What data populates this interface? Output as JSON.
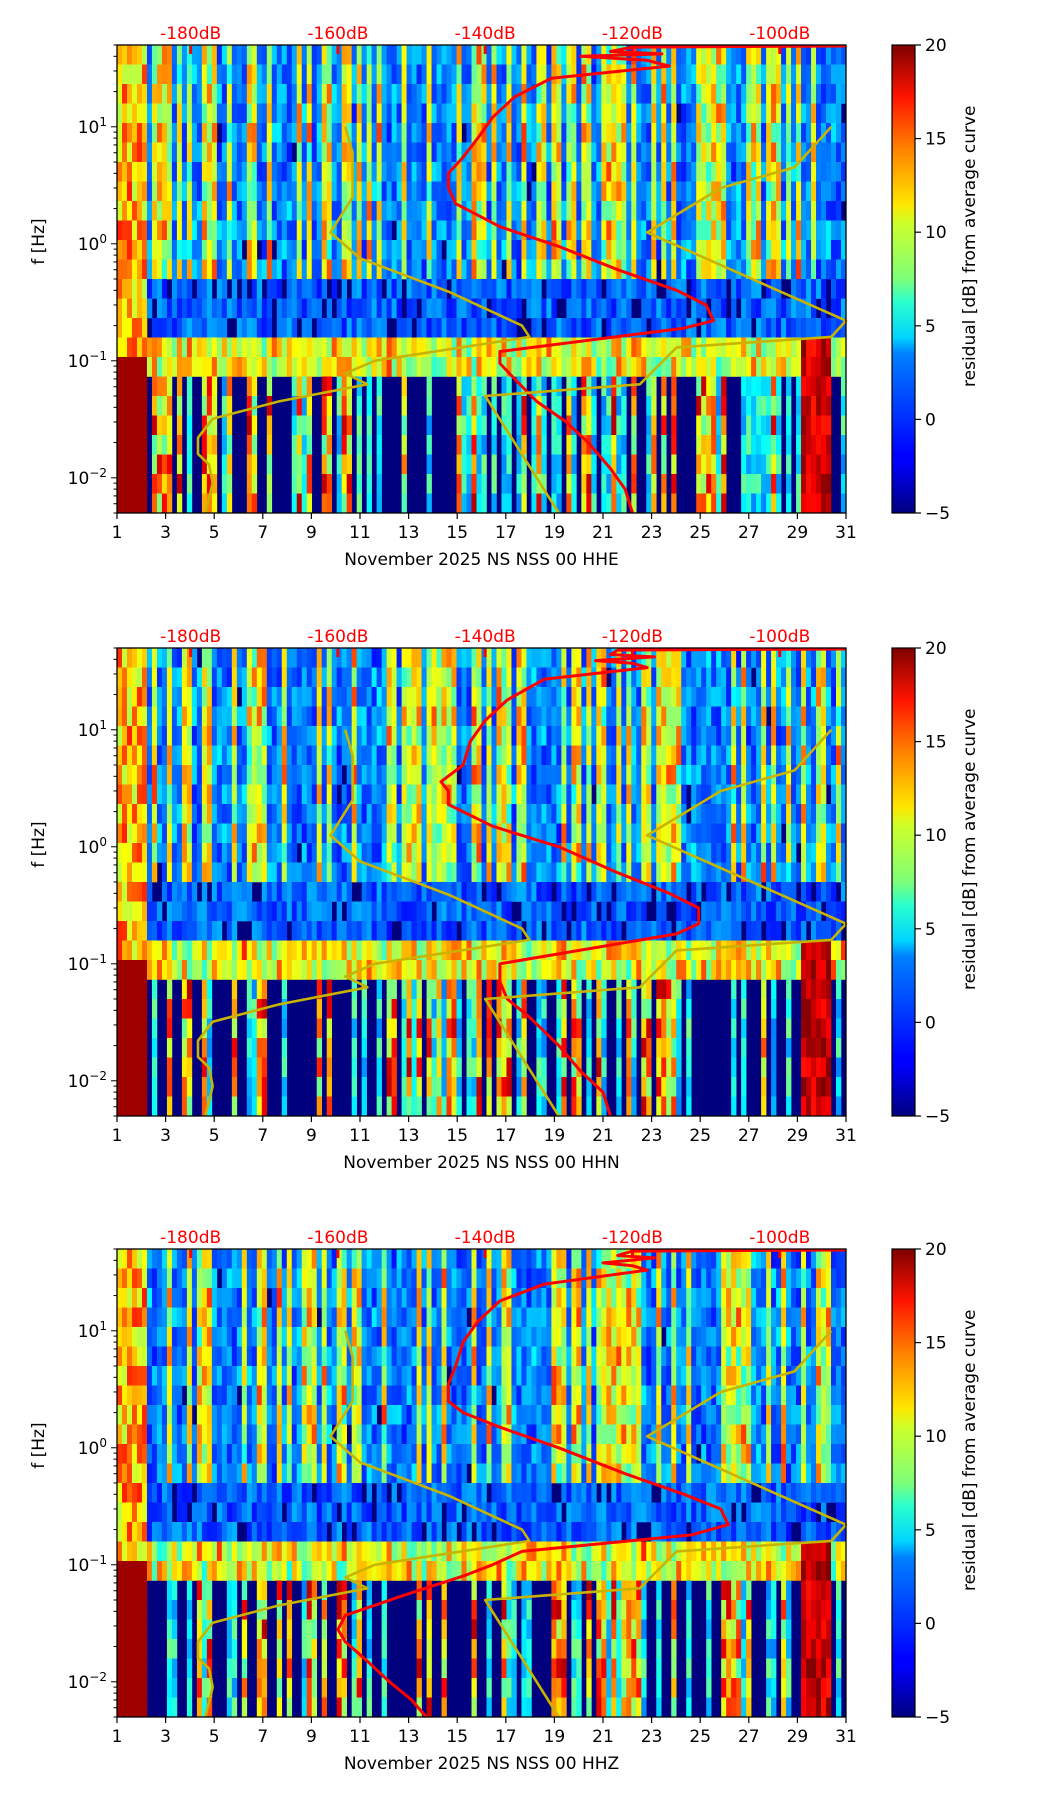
{
  "chart_data": [
    {
      "type": "heatmap",
      "title": "",
      "xlabel": "November 2025 NS NSS 00 HHE",
      "ylabel": "f [Hz]",
      "xlim": [
        1,
        31
      ],
      "ylim": [
        0.005,
        50
      ],
      "yscale": "log",
      "x_ticks": [
        "1",
        "3",
        "5",
        "7",
        "9",
        "11",
        "13",
        "15",
        "17",
        "19",
        "21",
        "23",
        "25",
        "27",
        "29",
        "31"
      ],
      "y_ticks": [
        {
          "exp": "1",
          "value": 10
        },
        {
          "exp": "0",
          "value": 1
        },
        {
          "exp": "−1",
          "value": 0.1
        },
        {
          "exp": "−2",
          "value": 0.01
        }
      ],
      "top_axis": {
        "ticks": [
          "-180dB",
          "-160dB",
          "-140dB",
          "-120dB",
          "-100dB"
        ],
        "values": [
          -180,
          -160,
          -140,
          -120,
          -100
        ],
        "range": [
          -190,
          -91
        ],
        "color": "#ff0000"
      },
      "colorbar": {
        "label": "residual [dB] from average curve",
        "ticks": [
          "20",
          "15",
          "10",
          "5",
          "0",
          "−5"
        ],
        "values": [
          20,
          15,
          10,
          5,
          0,
          -5
        ],
        "range": [
          -5,
          20
        ],
        "colormap": "jet"
      },
      "series": [
        {
          "name": "average PSD",
          "color": "#ff0000",
          "points_db_hz": [
            [
              -91,
              49
            ],
            [
              -120,
              48
            ],
            [
              -123,
              44
            ],
            [
              -116,
              42
            ],
            [
              -127,
              40
            ],
            [
              -118,
              37
            ],
            [
              -115,
              33
            ],
            [
              -131,
              26
            ],
            [
              -136,
              18
            ],
            [
              -139,
              12
            ],
            [
              -141,
              8
            ],
            [
              -143,
              5.5
            ],
            [
              -145,
              4
            ],
            [
              -145,
              3
            ],
            [
              -144,
              2.2
            ],
            [
              -138,
              1.4
            ],
            [
              -130,
              0.95
            ],
            [
              -122,
              0.6
            ],
            [
              -114,
              0.4
            ],
            [
              -110,
              0.3
            ],
            [
              -109,
              0.22
            ],
            [
              -113,
              0.19
            ],
            [
              -138,
              0.12
            ],
            [
              -138,
              0.095
            ],
            [
              -136,
              0.07
            ],
            [
              -133,
              0.045
            ],
            [
              -129,
              0.03
            ],
            [
              -126,
              0.02
            ],
            [
              -123,
              0.012
            ],
            [
              -121,
              0.008
            ],
            [
              -120,
              0.005
            ]
          ]
        },
        {
          "name": "NLNM/NHNM model",
          "color": "#c8b400",
          "points_db_hz": [
            [
              -178,
              0.005
            ],
            [
              -177,
              0.009
            ],
            [
              -177.5,
              0.013
            ],
            [
              -179,
              0.016
            ],
            [
              -179,
              0.022
            ],
            [
              -177,
              0.032
            ],
            [
              -168,
              0.045
            ],
            [
              -156,
              0.063
            ],
            [
              -159,
              0.078
            ],
            [
              -155,
              0.1
            ],
            [
              -134,
              0.16
            ],
            [
              -135,
              0.2
            ],
            [
              -145,
              0.39
            ],
            [
              -157,
              0.75
            ],
            [
              -161,
              1.25
            ],
            [
              -158,
              2.5
            ],
            [
              -158,
              6
            ],
            [
              -159,
              10
            ]
          ]
        },
        {
          "name": "NHNM model",
          "color": "#c8b400",
          "points_db_hz": [
            [
              -130,
              0.005
            ],
            [
              -140,
              0.05
            ],
            [
              -119,
              0.063
            ],
            [
              -114,
              0.13
            ],
            [
              -93,
              0.16
            ],
            [
              -91,
              0.22
            ],
            [
              -118,
              1.25
            ],
            [
              -108,
              3
            ],
            [
              -98,
              4.5
            ],
            [
              -93,
              10
            ]
          ]
        }
      ]
    },
    {
      "type": "heatmap",
      "title": "",
      "xlabel": "November 2025 NS NSS 00 HHN",
      "ylabel": "f [Hz]",
      "xlim": [
        1,
        31
      ],
      "ylim": [
        0.005,
        50
      ],
      "yscale": "log",
      "x_ticks": [
        "1",
        "3",
        "5",
        "7",
        "9",
        "11",
        "13",
        "15",
        "17",
        "19",
        "21",
        "23",
        "25",
        "27",
        "29",
        "31"
      ],
      "y_ticks": [
        {
          "exp": "1",
          "value": 10
        },
        {
          "exp": "0",
          "value": 1
        },
        {
          "exp": "−1",
          "value": 0.1
        },
        {
          "exp": "−2",
          "value": 0.01
        }
      ],
      "top_axis": {
        "ticks": [
          "-180dB",
          "-160dB",
          "-140dB",
          "-120dB",
          "-100dB"
        ],
        "values": [
          -180,
          -160,
          -140,
          -120,
          -100
        ],
        "range": [
          -190,
          -91
        ],
        "color": "#ff0000"
      },
      "colorbar": {
        "label": "residual [dB] from average curve",
        "ticks": [
          "20",
          "15",
          "10",
          "5",
          "0",
          "−5"
        ],
        "values": [
          20,
          15,
          10,
          5,
          0,
          -5
        ],
        "range": [
          -5,
          20
        ],
        "colormap": "jet"
      },
      "series": [
        {
          "name": "average PSD",
          "color": "#ff0000",
          "points_db_hz": [
            [
              -91,
              49
            ],
            [
              -122,
              48
            ],
            [
              -123,
              44
            ],
            [
              -117,
              42
            ],
            [
              -125,
              39
            ],
            [
              -120,
              37
            ],
            [
              -118,
              34
            ],
            [
              -132,
              27
            ],
            [
              -137,
              18
            ],
            [
              -140,
              12
            ],
            [
              -142,
              8
            ],
            [
              -143,
              5
            ],
            [
              -146,
              3.6
            ],
            [
              -145,
              3
            ],
            [
              -145,
              2.3
            ],
            [
              -139,
              1.5
            ],
            [
              -130,
              1
            ],
            [
              -122,
              0.6
            ],
            [
              -115,
              0.4
            ],
            [
              -111,
              0.3
            ],
            [
              -111,
              0.22
            ],
            [
              -114,
              0.18
            ],
            [
              -138,
              0.1
            ],
            [
              -138,
              0.07
            ],
            [
              -137,
              0.05
            ],
            [
              -134,
              0.035
            ],
            [
              -130,
              0.02
            ],
            [
              -127,
              0.012
            ],
            [
              -124,
              0.008
            ],
            [
              -123,
              0.005
            ]
          ]
        },
        {
          "name": "NLNM/NHNM model",
          "color": "#c8b400",
          "points_db_hz": [
            [
              -178,
              0.005
            ],
            [
              -177,
              0.009
            ],
            [
              -177.5,
              0.013
            ],
            [
              -179,
              0.016
            ],
            [
              -179,
              0.022
            ],
            [
              -177,
              0.032
            ],
            [
              -168,
              0.045
            ],
            [
              -156,
              0.063
            ],
            [
              -159,
              0.078
            ],
            [
              -155,
              0.1
            ],
            [
              -134,
              0.16
            ],
            [
              -135,
              0.2
            ],
            [
              -145,
              0.39
            ],
            [
              -157,
              0.75
            ],
            [
              -161,
              1.25
            ],
            [
              -158,
              2.5
            ],
            [
              -158,
              6
            ],
            [
              -159,
              10
            ]
          ]
        },
        {
          "name": "NHNM model",
          "color": "#c8b400",
          "points_db_hz": [
            [
              -130,
              0.005
            ],
            [
              -140,
              0.05
            ],
            [
              -119,
              0.063
            ],
            [
              -114,
              0.13
            ],
            [
              -93,
              0.16
            ],
            [
              -91,
              0.22
            ],
            [
              -118,
              1.25
            ],
            [
              -108,
              3
            ],
            [
              -98,
              4.5
            ],
            [
              -93,
              10
            ]
          ]
        }
      ]
    },
    {
      "type": "heatmap",
      "title": "",
      "xlabel": "November 2025 NS NSS 00 HHZ",
      "ylabel": "f [Hz]",
      "xlim": [
        1,
        31
      ],
      "ylim": [
        0.005,
        50
      ],
      "yscale": "log",
      "x_ticks": [
        "1",
        "3",
        "5",
        "7",
        "9",
        "11",
        "13",
        "15",
        "17",
        "19",
        "21",
        "23",
        "25",
        "27",
        "29",
        "31"
      ],
      "y_ticks": [
        {
          "exp": "1",
          "value": 10
        },
        {
          "exp": "0",
          "value": 1
        },
        {
          "exp": "−1",
          "value": 0.1
        },
        {
          "exp": "−2",
          "value": 0.01
        }
      ],
      "top_axis": {
        "ticks": [
          "-180dB",
          "-160dB",
          "-140dB",
          "-120dB",
          "-100dB"
        ],
        "values": [
          -180,
          -160,
          -140,
          -120,
          -100
        ],
        "range": [
          -190,
          -91
        ],
        "color": "#ff0000"
      },
      "colorbar": {
        "label": "residual [dB] from average curve",
        "ticks": [
          "20",
          "15",
          "10",
          "5",
          "0",
          "−5"
        ],
        "values": [
          20,
          15,
          10,
          5,
          0,
          -5
        ],
        "range": [
          -5,
          20
        ],
        "colormap": "jet"
      },
      "series": [
        {
          "name": "average PSD",
          "color": "#ff0000",
          "points_db_hz": [
            [
              -91,
              49
            ],
            [
              -120,
              48
            ],
            [
              -122,
              44
            ],
            [
              -117,
              42
            ],
            [
              -124,
              38
            ],
            [
              -120,
              36
            ],
            [
              -118,
              33
            ],
            [
              -132,
              25
            ],
            [
              -138,
              18
            ],
            [
              -141,
              12
            ],
            [
              -143,
              8
            ],
            [
              -144,
              5
            ],
            [
              -145,
              3.5
            ],
            [
              -145,
              2.5
            ],
            [
              -143,
              2
            ],
            [
              -138,
              1.5
            ],
            [
              -130,
              1
            ],
            [
              -121,
              0.6
            ],
            [
              -113,
              0.4
            ],
            [
              -108,
              0.3
            ],
            [
              -107,
              0.22
            ],
            [
              -112,
              0.18
            ],
            [
              -135,
              0.13
            ],
            [
              -139,
              0.1
            ],
            [
              -143,
              0.08
            ],
            [
              -151,
              0.055
            ],
            [
              -159,
              0.037
            ],
            [
              -160,
              0.028
            ],
            [
              -159,
              0.022
            ],
            [
              -156,
              0.015
            ],
            [
              -153,
              0.01
            ],
            [
              -150,
              0.007
            ],
            [
              -148,
              0.005
            ]
          ]
        },
        {
          "name": "NLNM/NHNM model",
          "color": "#c8b400",
          "points_db_hz": [
            [
              -178,
              0.005
            ],
            [
              -177,
              0.009
            ],
            [
              -177.5,
              0.013
            ],
            [
              -179,
              0.016
            ],
            [
              -179,
              0.022
            ],
            [
              -177,
              0.032
            ],
            [
              -168,
              0.045
            ],
            [
              -156,
              0.063
            ],
            [
              -159,
              0.078
            ],
            [
              -155,
              0.1
            ],
            [
              -134,
              0.16
            ],
            [
              -135,
              0.2
            ],
            [
              -145,
              0.39
            ],
            [
              -157,
              0.75
            ],
            [
              -161,
              1.25
            ],
            [
              -158,
              2.5
            ],
            [
              -158,
              6
            ],
            [
              -159,
              10
            ]
          ]
        },
        {
          "name": "NHNM model",
          "color": "#c8b400",
          "points_db_hz": [
            [
              -130,
              0.005
            ],
            [
              -140,
              0.05
            ],
            [
              -119,
              0.063
            ],
            [
              -114,
              0.13
            ],
            [
              -93,
              0.16
            ],
            [
              -91,
              0.22
            ],
            [
              -118,
              1.25
            ],
            [
              -108,
              3
            ],
            [
              -98,
              4.5
            ],
            [
              -93,
              10
            ]
          ]
        }
      ]
    }
  ]
}
